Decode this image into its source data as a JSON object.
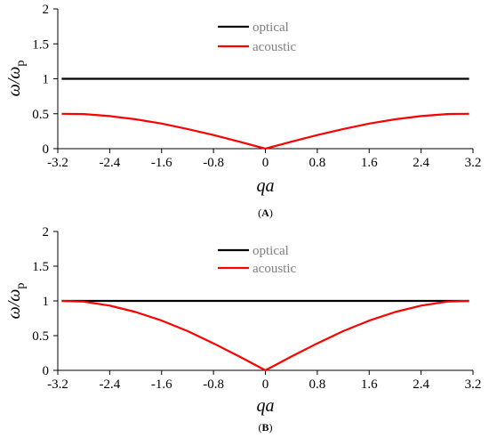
{
  "chart_data": [
    {
      "type": "line",
      "panel_label": "(A)",
      "xlabel": "qa",
      "ylabel": "ω/ω_p",
      "xlim": [
        -3.2,
        3.2
      ],
      "ylim": [
        0,
        2
      ],
      "x_ticks": [
        "-3.2",
        "-2.4",
        "-1.6",
        "-0.8",
        "0",
        "0.8",
        "1.6",
        "2.4",
        "3.2"
      ],
      "y_ticks": [
        "0",
        "0.5",
        "1",
        "1.5",
        "2"
      ],
      "grid": false,
      "legend_position": "top-center",
      "series": [
        {
          "name": "optical",
          "color": "#000000",
          "x": [
            -3.14,
            0,
            3.14
          ],
          "y": [
            1,
            1,
            1
          ]
        },
        {
          "name": "acoustic",
          "color": "#ff0000",
          "x": [
            -3.14,
            -2.8,
            -2.4,
            -2.0,
            -1.6,
            -1.2,
            -0.8,
            -0.4,
            0,
            0.4,
            0.8,
            1.2,
            1.6,
            2.0,
            2.4,
            2.8,
            3.14
          ],
          "y": [
            0.5,
            0.495,
            0.466,
            0.42,
            0.359,
            0.282,
            0.195,
            0.099,
            0,
            0.099,
            0.195,
            0.282,
            0.359,
            0.42,
            0.466,
            0.495,
            0.5
          ]
        }
      ]
    },
    {
      "type": "line",
      "panel_label": "(B)",
      "xlabel": "qa",
      "ylabel": "ω/ω_p",
      "xlim": [
        -3.2,
        3.2
      ],
      "ylim": [
        0,
        2
      ],
      "x_ticks": [
        "-3.2",
        "-2.4",
        "-1.6",
        "-0.8",
        "0",
        "0.8",
        "1.6",
        "2.4",
        "3.2"
      ],
      "y_ticks": [
        "0",
        "0.5",
        "1",
        "1.5",
        "2"
      ],
      "grid": false,
      "legend_position": "top-center",
      "series": [
        {
          "name": "optical",
          "color": "#000000",
          "x": [
            -3.14,
            0,
            3.14
          ],
          "y": [
            1,
            1,
            1
          ]
        },
        {
          "name": "acoustic",
          "color": "#ff0000",
          "x": [
            -3.14,
            -2.8,
            -2.4,
            -2.0,
            -1.6,
            -1.2,
            -0.8,
            -0.4,
            0,
            0.4,
            0.8,
            1.2,
            1.6,
            2.0,
            2.4,
            2.8,
            3.14
          ],
          "y": [
            1,
            0.99,
            0.932,
            0.84,
            0.717,
            0.565,
            0.389,
            0.199,
            0,
            0.199,
            0.389,
            0.565,
            0.717,
            0.84,
            0.932,
            0.99,
            1
          ]
        }
      ]
    }
  ]
}
